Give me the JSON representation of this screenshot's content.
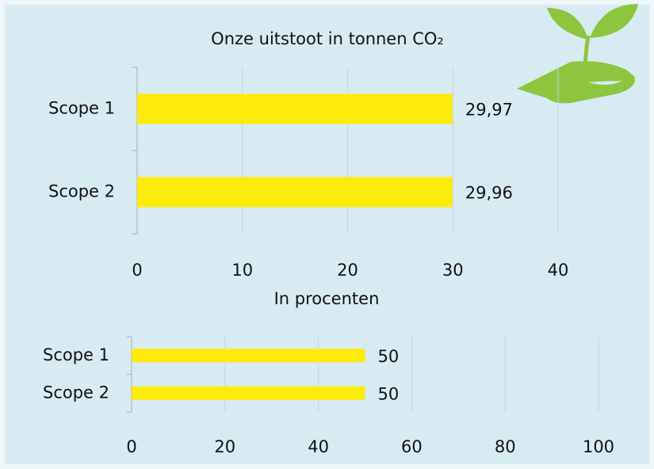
{
  "chart_data": [
    {
      "type": "hbar",
      "title": "Onze uitstoot in tonnen CO₂",
      "categories": [
        "Scope 1",
        "Scope 2"
      ],
      "values": [
        29.97,
        29.96
      ],
      "value_labels": [
        "29,97",
        "29,96"
      ],
      "color": "#ffeb0a",
      "xlim": [
        0,
        40
      ],
      "xticks": [
        0,
        10,
        20,
        30,
        40
      ],
      "grid": true
    },
    {
      "type": "hbar",
      "title": "In procenten",
      "categories": [
        "Scope 1",
        "Scope 2"
      ],
      "values": [
        50,
        50
      ],
      "color": "#ffeb0a",
      "xlim": [
        0,
        100
      ],
      "xticks": [
        0,
        20,
        40,
        60,
        80,
        100
      ],
      "grid": true
    }
  ]
}
